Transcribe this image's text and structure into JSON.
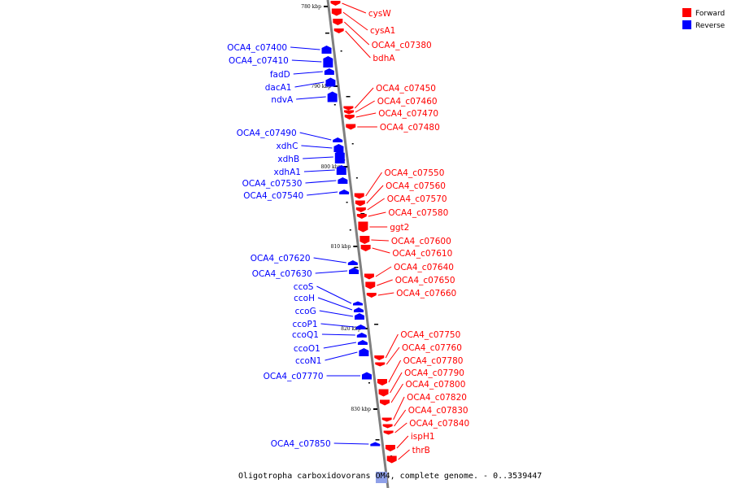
{
  "caption": "Oligotropha carboxidovorans OM4, complete genome. - 0..3539447",
  "legend": [
    {
      "label": "Forward",
      "color": "#ff0000"
    },
    {
      "label": "Reverse",
      "color": "#0000ff"
    }
  ],
  "colors": {
    "forward": "#ff0000",
    "reverse": "#0000ff",
    "axis": "#7f7f7f"
  },
  "ticks": [
    "780 kbp",
    "790 kbp",
    "800 kbp",
    "810 kbp",
    "820 kbp",
    "830 kbp"
  ],
  "forward_genes": [
    "cysW",
    "cysA1",
    "OCA4_c07380",
    "bdhA",
    "OCA4_c07450",
    "OCA4_c07460",
    "OCA4_c07470",
    "OCA4_c07480",
    "OCA4_c07550",
    "OCA4_c07560",
    "OCA4_c07570",
    "OCA4_c07580",
    "ggt2",
    "OCA4_c07600",
    "OCA4_c07610",
    "OCA4_c07640",
    "OCA4_c07650",
    "OCA4_c07660",
    "OCA4_c07750",
    "OCA4_c07760",
    "OCA4_c07780",
    "OCA4_c07790",
    "OCA4_c07800",
    "OCA4_c07820",
    "OCA4_c07830",
    "OCA4_c07840",
    "ispH1",
    "thrB"
  ],
  "reverse_genes": [
    "OCA4_c07400",
    "OCA4_c07410",
    "fadD",
    "dacA1",
    "ndvA",
    "OCA4_c07490",
    "xdhC",
    "xdhB",
    "xdhA1",
    "OCA4_c07530",
    "OCA4_c07540",
    "OCA4_c07620",
    "OCA4_c07630",
    "ccoS",
    "ccoH",
    "ccoG",
    "ccoP1",
    "ccoQ1",
    "ccoO1",
    "ccoN1",
    "OCA4_c07770",
    "OCA4_c07850"
  ]
}
